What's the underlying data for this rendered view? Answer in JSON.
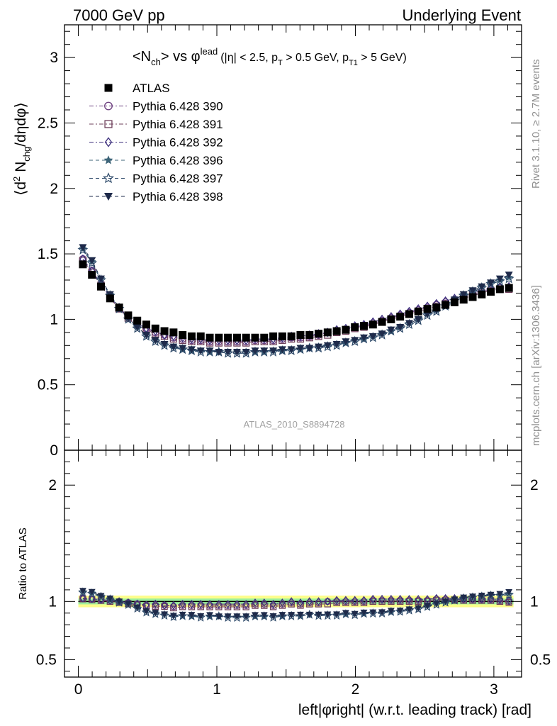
{
  "header": {
    "left": "7000 GeV pp",
    "right": "Underlying Event"
  },
  "plot_title": {
    "main": "<N",
    "main_sub": "ch",
    "vs": "> vs φ",
    "vs_sup": "lead",
    "cuts_a": "(|η| < 2.5, p",
    "cuts_sub1": "T",
    "cuts_b": " > 0.5 GeV, p",
    "cuts_sub2": "T1",
    "cuts_c": " > 5 GeV)"
  },
  "side_labels": {
    "rivet": "Rivet 3.1.10, ≥ 2.7M events",
    "mcplots": "mcplots.cern.ch [arXiv:1306.3436]"
  },
  "watermark": "ATLAS_2010_S8894728",
  "colors": {
    "atlas": "#000000",
    "p390": "#6b3d7d",
    "p391": "#6e3f5a",
    "p392": "#3d2f7d",
    "p396": "#3c6478",
    "p397": "#2e4a6a",
    "p398": "#1e2a4a",
    "band_outer": "#fdfd8a",
    "band_inner": "#9ef09e"
  },
  "chart_data": [
    {
      "type": "scatter",
      "panel": "main",
      "ylabel_a": "⟨d",
      "ylabel_sup": "2",
      "ylabel_b": " N",
      "ylabel_sub": "chg",
      "ylabel_c": "/dηdφ⟩",
      "xlim": [
        -0.1,
        3.2
      ],
      "ylim": [
        0,
        3.25
      ],
      "yticks": [
        {
          "v": 0.5,
          "label": "0.5"
        },
        {
          "v": 1,
          "label": "1"
        },
        {
          "v": 1.5,
          "label": "1.5"
        },
        {
          "v": 2,
          "label": "2"
        },
        {
          "v": 2.5,
          "label": "2.5"
        },
        {
          "v": 3,
          "label": "3"
        }
      ],
      "y_zero_label": "0",
      "legend_position": "top-left",
      "series": [
        {
          "key": "atlas",
          "name": "ATLAS",
          "marker": "square-filled",
          "line": "none",
          "values": [
            1.42,
            1.34,
            1.25,
            1.16,
            1.09,
            1.03,
            0.99,
            0.96,
            0.93,
            0.91,
            0.9,
            0.88,
            0.87,
            0.87,
            0.86,
            0.86,
            0.86,
            0.86,
            0.86,
            0.86,
            0.86,
            0.87,
            0.87,
            0.87,
            0.88,
            0.88,
            0.89,
            0.9,
            0.91,
            0.92,
            0.94,
            0.95,
            0.96,
            0.98,
            1.0,
            1.02,
            1.04,
            1.06,
            1.08,
            1.09,
            1.11,
            1.13,
            1.15,
            1.17,
            1.19,
            1.21,
            1.23,
            1.24
          ]
        },
        {
          "key": "p390",
          "name": "Pythia 6.428 390",
          "marker": "circle-open",
          "line": "dashdot",
          "values": [
            1.46,
            1.37,
            1.27,
            1.17,
            1.09,
            1.02,
            0.97,
            0.93,
            0.9,
            0.88,
            0.86,
            0.85,
            0.84,
            0.84,
            0.83,
            0.83,
            0.83,
            0.83,
            0.83,
            0.84,
            0.84,
            0.84,
            0.85,
            0.86,
            0.86,
            0.87,
            0.88,
            0.9,
            0.91,
            0.92,
            0.94,
            0.95,
            0.97,
            0.99,
            1.01,
            1.03,
            1.05,
            1.07,
            1.09,
            1.11,
            1.13,
            1.15,
            1.17,
            1.19,
            1.21,
            1.23,
            1.24,
            1.24
          ]
        },
        {
          "key": "p391",
          "name": "Pythia 6.428 391",
          "marker": "square-open",
          "line": "dashdot",
          "values": [
            1.45,
            1.36,
            1.26,
            1.16,
            1.08,
            1.01,
            0.96,
            0.92,
            0.89,
            0.87,
            0.85,
            0.84,
            0.83,
            0.83,
            0.82,
            0.82,
            0.82,
            0.82,
            0.82,
            0.83,
            0.83,
            0.83,
            0.84,
            0.85,
            0.85,
            0.86,
            0.87,
            0.88,
            0.9,
            0.91,
            0.93,
            0.94,
            0.96,
            0.98,
            1.0,
            1.02,
            1.04,
            1.06,
            1.08,
            1.1,
            1.12,
            1.14,
            1.16,
            1.18,
            1.2,
            1.22,
            1.23,
            1.23
          ]
        },
        {
          "key": "p392",
          "name": "Pythia 6.428 392",
          "marker": "diamond-open",
          "line": "dashdot",
          "values": [
            1.46,
            1.37,
            1.27,
            1.17,
            1.09,
            1.02,
            0.97,
            0.93,
            0.91,
            0.88,
            0.87,
            0.86,
            0.85,
            0.85,
            0.84,
            0.84,
            0.84,
            0.84,
            0.84,
            0.85,
            0.85,
            0.85,
            0.86,
            0.87,
            0.87,
            0.88,
            0.89,
            0.9,
            0.92,
            0.93,
            0.95,
            0.96,
            0.98,
            1.0,
            1.02,
            1.04,
            1.06,
            1.08,
            1.1,
            1.12,
            1.14,
            1.16,
            1.18,
            1.2,
            1.22,
            1.24,
            1.25,
            1.25
          ]
        },
        {
          "key": "p396",
          "name": "Pythia 6.428 396",
          "marker": "star-filled",
          "line": "dashed",
          "values": [
            1.54,
            1.44,
            1.31,
            1.19,
            1.09,
            1.01,
            0.94,
            0.88,
            0.84,
            0.81,
            0.79,
            0.77,
            0.76,
            0.76,
            0.75,
            0.75,
            0.75,
            0.75,
            0.75,
            0.75,
            0.75,
            0.76,
            0.76,
            0.77,
            0.77,
            0.78,
            0.79,
            0.8,
            0.81,
            0.82,
            0.84,
            0.85,
            0.87,
            0.89,
            0.91,
            0.94,
            0.97,
            1.0,
            1.04,
            1.07,
            1.11,
            1.15,
            1.19,
            1.22,
            1.25,
            1.28,
            1.3,
            1.32
          ]
        },
        {
          "key": "p397",
          "name": "Pythia 6.428 397",
          "marker": "star-open",
          "line": "dashed",
          "values": [
            1.53,
            1.43,
            1.3,
            1.18,
            1.08,
            1.0,
            0.93,
            0.87,
            0.83,
            0.8,
            0.78,
            0.77,
            0.76,
            0.75,
            0.75,
            0.75,
            0.74,
            0.74,
            0.74,
            0.75,
            0.75,
            0.75,
            0.76,
            0.76,
            0.77,
            0.78,
            0.78,
            0.79,
            0.8,
            0.82,
            0.83,
            0.85,
            0.86,
            0.88,
            0.91,
            0.93,
            0.96,
            0.99,
            1.03,
            1.06,
            1.1,
            1.14,
            1.18,
            1.21,
            1.24,
            1.27,
            1.29,
            1.31
          ]
        },
        {
          "key": "p398",
          "name": "Pythia 6.428 398",
          "marker": "triangle-down-filled",
          "line": "dashed",
          "values": [
            1.55,
            1.45,
            1.31,
            1.19,
            1.09,
            1.01,
            0.94,
            0.88,
            0.84,
            0.81,
            0.79,
            0.78,
            0.77,
            0.76,
            0.76,
            0.75,
            0.75,
            0.75,
            0.75,
            0.76,
            0.76,
            0.76,
            0.77,
            0.77,
            0.78,
            0.78,
            0.79,
            0.8,
            0.81,
            0.83,
            0.84,
            0.86,
            0.87,
            0.89,
            0.92,
            0.94,
            0.97,
            1.0,
            1.04,
            1.07,
            1.11,
            1.15,
            1.19,
            1.22,
            1.25,
            1.28,
            1.31,
            1.34
          ]
        }
      ]
    },
    {
      "type": "scatter",
      "panel": "ratio",
      "ylabel": "Ratio to ATLAS",
      "xlabel": "left|φright| (w.r.t. leading track) [rad]",
      "xlim": [
        -0.1,
        3.2
      ],
      "ylim": [
        0.35,
        2.3
      ],
      "xticks": [
        {
          "v": 0,
          "label": "0"
        },
        {
          "v": 1,
          "label": "1"
        },
        {
          "v": 2,
          "label": "2"
        },
        {
          "v": 3,
          "label": "3"
        }
      ],
      "yticks": [
        {
          "v": 0.5,
          "label": "0.5"
        },
        {
          "v": 1,
          "label": "1"
        },
        {
          "v": 2,
          "label": "2"
        }
      ],
      "band_outer": [
        0.95,
        1.05
      ],
      "band_inner": [
        0.975,
        1.025
      ],
      "reference_line": 1
    }
  ]
}
